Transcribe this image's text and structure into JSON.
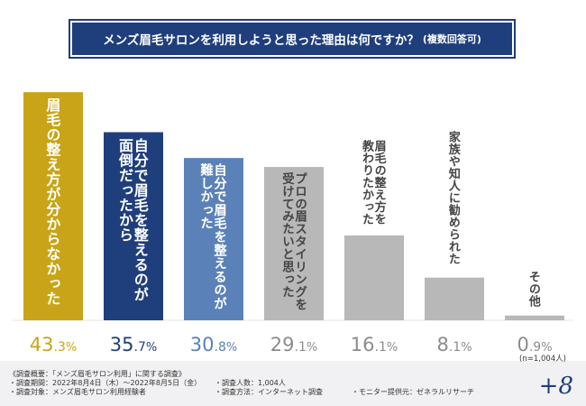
{
  "title": {
    "main": "メンズ眉毛サロンを利用しようと思った理由は何ですか？",
    "note": "(複数回答可)"
  },
  "chart_data": {
    "type": "bar",
    "title": "メンズ眉毛サロンを利用しようと思った理由は何ですか？(複数回答可)",
    "categories": [
      "眉毛の整え方が分からなかった",
      "自分で眉毛を整えるのが面倒だったから",
      "自分で眉毛を整えるのが難しかった",
      "プロの眉スタイリングを受けてみたいと思った",
      "眉毛の整え方を教わりたかった",
      "家族や知人に勧められた",
      "その他"
    ],
    "label_lines": [
      [
        "眉毛の整え方が分からなかった"
      ],
      [
        "自分で眉毛を整えるのが",
        "面倒だったから"
      ],
      [
        "自分で眉毛を整えるのが",
        "難しかった"
      ],
      [
        "プロの眉スタイリングを",
        "受けてみたいと思った"
      ],
      [
        "眉毛の整え方を",
        "教わりたかった"
      ],
      [
        "家族や知人に勧められた"
      ],
      [
        "その他"
      ]
    ],
    "values": [
      43.3,
      35.7,
      30.8,
      29.1,
      16.1,
      8.1,
      0.9
    ],
    "value_labels": [
      {
        "int": "43",
        "dec": ".3",
        "unit": "%"
      },
      {
        "int": "35",
        "dec": ".7",
        "unit": "%"
      },
      {
        "int": "30",
        "dec": ".8",
        "unit": "%"
      },
      {
        "int": "29",
        "dec": ".1",
        "unit": "%"
      },
      {
        "int": "16",
        "dec": ".1",
        "unit": "%"
      },
      {
        "int": "8",
        "dec": ".1",
        "unit": "%"
      },
      {
        "int": "0",
        "dec": ".9",
        "unit": "%"
      }
    ],
    "colors": [
      "#c9a417",
      "#1f3f7c",
      "#5b82b8",
      "#b8b8b8",
      "#b8b8b8",
      "#b8b8b8",
      "#b8b8b8"
    ],
    "label_colors": [
      "#ffffff",
      "#ffffff",
      "#ffffff",
      "#444444",
      "#444444",
      "#444444",
      "#444444"
    ],
    "value_colors": [
      "#c9a417",
      "#1f3f7c",
      "#5b82b8",
      "#8c8c8c",
      "#8c8c8c",
      "#8c8c8c",
      "#8c8c8c"
    ],
    "ylim": [
      0,
      50
    ],
    "sample_size": "(n=1,004人)"
  },
  "footer": {
    "line1": "《調査概要：「メンズ眉毛サロン利用」に関する調査》",
    "line2": "・調査期間：2022年8月4日（木）〜2022年8月5日（金）",
    "line3": "・調査対象：メンズ眉毛サロン利用経験者",
    "line4": "・調査人数：1,004人",
    "line5": "・調査方法：インターネット調査",
    "line6": "・モニター提供元：ゼネラルリサーチ",
    "logo": "+8"
  }
}
